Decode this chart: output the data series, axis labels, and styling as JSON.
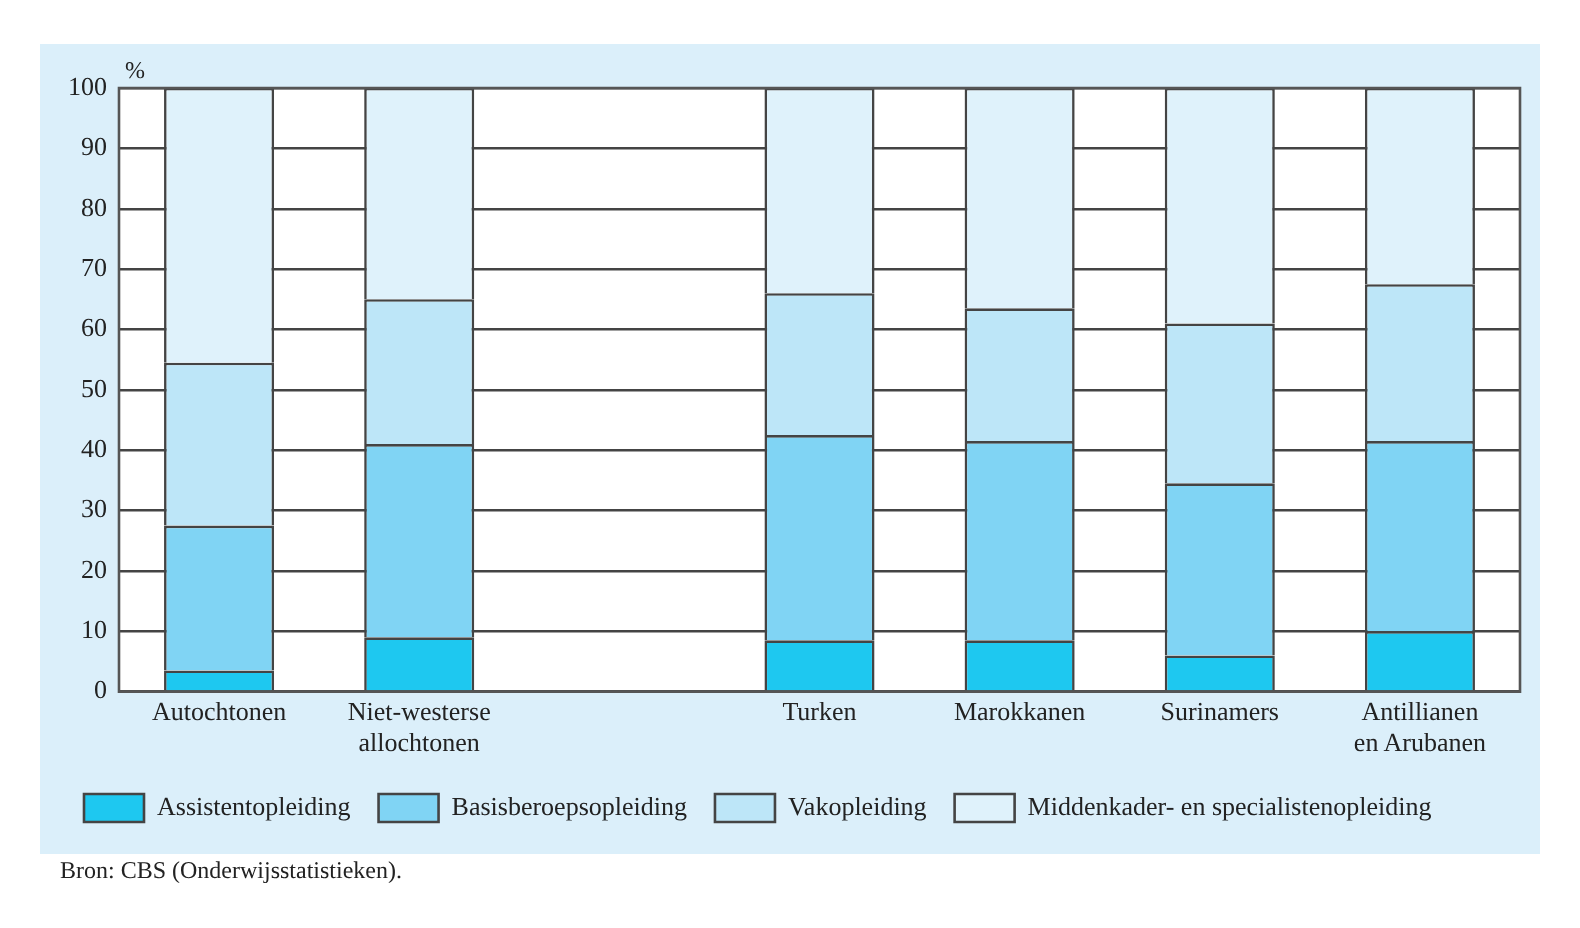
{
  "chart_data": {
    "type": "bar",
    "stacked": true,
    "ylabel": "%",
    "categories": [
      "Autochtonen",
      "Niet-westerse allochtonen",
      null,
      "Turken",
      "Marokkanen",
      "Surinamers",
      "Antillianen en Arubanen"
    ],
    "series": [
      {
        "name": "Assistentopleiding",
        "color": "#1ec8f0",
        "values": [
          3.5,
          9,
          null,
          8.5,
          8.5,
          6,
          10
        ]
      },
      {
        "name": "Basisberoepsopleiding",
        "color": "#80d4f4",
        "values": [
          24,
          32,
          null,
          34,
          33,
          28.5,
          31.5
        ]
      },
      {
        "name": "Vakopleiding",
        "color": "#bde6f8",
        "values": [
          27,
          24,
          null,
          23.5,
          22,
          26.5,
          26
        ]
      },
      {
        "name": "Middenkader- en specialistenopleiding",
        "color": "#dff2fb",
        "values": [
          45.5,
          35,
          null,
          34,
          36.5,
          39,
          32.5
        ]
      }
    ],
    "ylim": [
      0,
      100
    ],
    "yticks": [
      0,
      10,
      20,
      30,
      40,
      50,
      60,
      70,
      80,
      90,
      100
    ],
    "grid": "y",
    "legend": "bottom",
    "annotations": [
      "Bron: CBS (Onderwijsstatistieken)."
    ]
  }
}
